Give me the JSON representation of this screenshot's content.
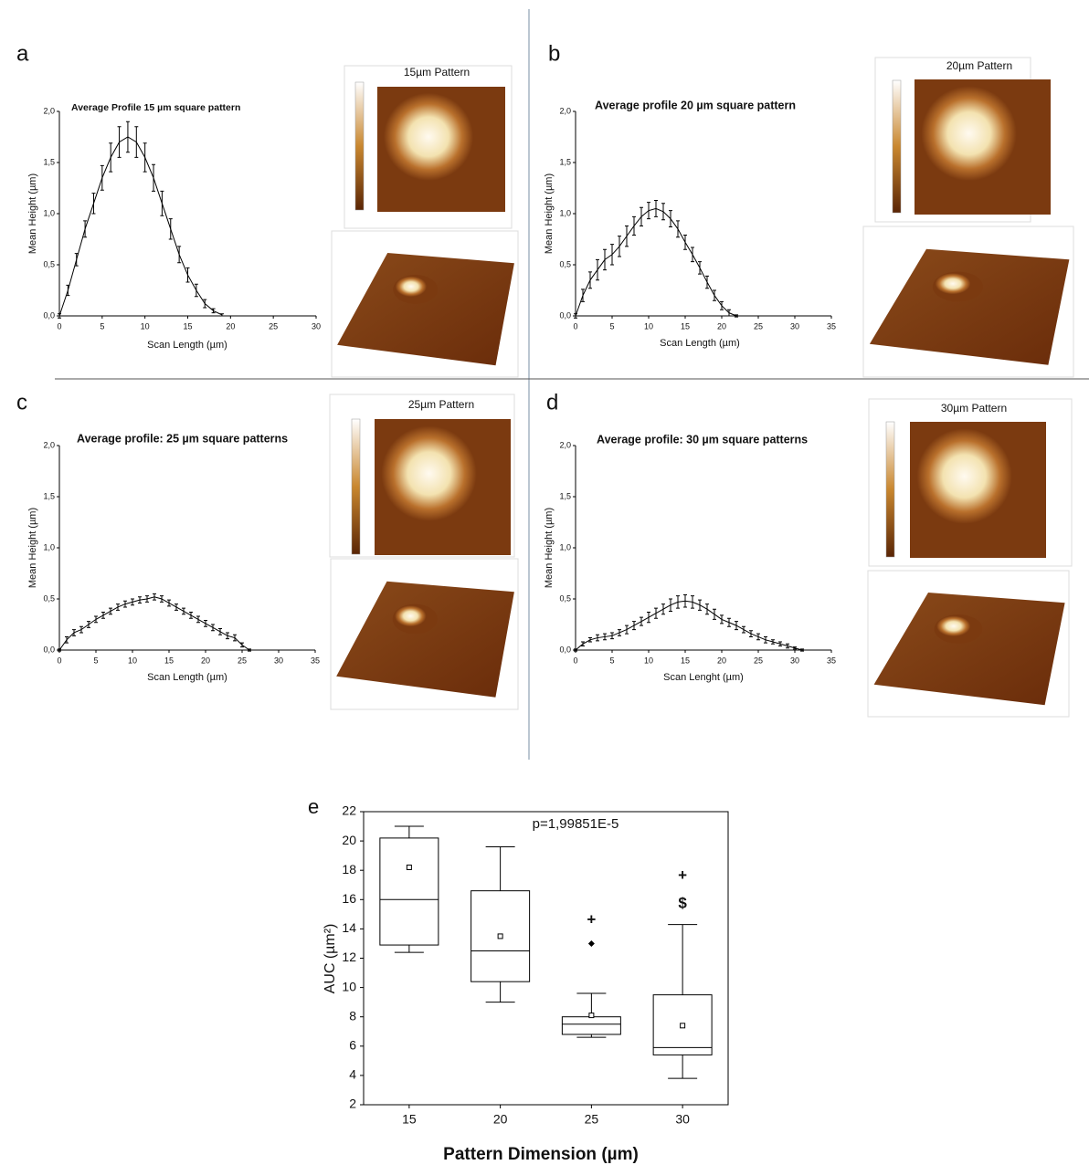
{
  "chart_data": [
    {
      "type": "line",
      "panel": "a",
      "title": "Average Profile 15 µm square pattern",
      "xlabel": "Scan Length (µm)",
      "ylabel": "Mean Height (µm)",
      "image_title": "15µm Pattern",
      "color": "#000000",
      "xlim": [
        0,
        30
      ],
      "xticks": [
        0,
        5,
        10,
        15,
        20,
        25,
        30
      ],
      "ylim": [
        0,
        2
      ],
      "yticks": [
        {
          "value": 0,
          "label": "0,0"
        },
        {
          "value": 0.5,
          "label": "0,5"
        },
        {
          "value": 1,
          "label": "1,0"
        },
        {
          "value": 1.5,
          "label": "1,5"
        },
        {
          "value": 2,
          "label": "2,0"
        }
      ],
      "x": [
        0,
        1,
        2,
        3,
        4,
        5,
        6,
        7,
        8,
        9,
        10,
        11,
        12,
        13,
        14,
        15,
        16,
        17,
        18,
        19
      ],
      "values": [
        0,
        0.25,
        0.55,
        0.85,
        1.1,
        1.35,
        1.55,
        1.7,
        1.75,
        1.7,
        1.55,
        1.35,
        1.1,
        0.85,
        0.6,
        0.4,
        0.25,
        0.12,
        0.05,
        0.01
      ],
      "errors": [
        0.02,
        0.05,
        0.06,
        0.08,
        0.1,
        0.12,
        0.14,
        0.15,
        0.15,
        0.15,
        0.14,
        0.13,
        0.12,
        0.1,
        0.08,
        0.07,
        0.06,
        0.04,
        0.02,
        0.01
      ]
    },
    {
      "type": "line",
      "panel": "b",
      "title": "Average profile 20 µm square pattern",
      "xlabel": "Scan Length (µm)",
      "ylabel": "Mean Height (µm)",
      "image_title": "20µm Pattern",
      "color": "#000000",
      "xlim": [
        0,
        35
      ],
      "xticks": [
        0,
        5,
        10,
        15,
        20,
        25,
        30,
        35
      ],
      "ylim": [
        0,
        2
      ],
      "yticks": [
        {
          "value": 0,
          "label": "0,0"
        },
        {
          "value": 0.5,
          "label": "0,5"
        },
        {
          "value": 1,
          "label": "1,0"
        },
        {
          "value": 1.5,
          "label": "1,5"
        },
        {
          "value": 2,
          "label": "2,0"
        }
      ],
      "x": [
        0,
        1,
        2,
        3,
        4,
        5,
        6,
        7,
        8,
        9,
        10,
        11,
        12,
        13,
        14,
        15,
        16,
        17,
        18,
        19,
        20,
        21,
        22
      ],
      "values": [
        0,
        0.2,
        0.35,
        0.45,
        0.55,
        0.6,
        0.68,
        0.78,
        0.88,
        0.97,
        1.03,
        1.05,
        1.02,
        0.95,
        0.85,
        0.72,
        0.6,
        0.47,
        0.33,
        0.2,
        0.1,
        0.03,
        0
      ],
      "errors": [
        0.02,
        0.06,
        0.08,
        0.1,
        0.1,
        0.1,
        0.1,
        0.1,
        0.09,
        0.09,
        0.08,
        0.08,
        0.08,
        0.08,
        0.08,
        0.07,
        0.07,
        0.06,
        0.06,
        0.05,
        0.04,
        0.03,
        0.01
      ]
    },
    {
      "type": "line",
      "panel": "c",
      "title": "Average profile: 25 µm square patterns",
      "xlabel": "Scan Length (µm)",
      "ylabel": "Mean Height (µm)",
      "image_title": "25µm Pattern",
      "color": "#000000",
      "xlim": [
        0,
        35
      ],
      "xticks": [
        0,
        5,
        10,
        15,
        20,
        25,
        30,
        35
      ],
      "ylim": [
        0,
        2
      ],
      "yticks": [
        {
          "value": 0,
          "label": "0,0"
        },
        {
          "value": 0.5,
          "label": "0,5"
        },
        {
          "value": 1,
          "label": "1,0"
        },
        {
          "value": 1.5,
          "label": "1,5"
        },
        {
          "value": 2,
          "label": "2,0"
        }
      ],
      "x": [
        0,
        1,
        2,
        3,
        4,
        5,
        6,
        7,
        8,
        9,
        10,
        11,
        12,
        13,
        14,
        15,
        16,
        17,
        18,
        19,
        20,
        21,
        22,
        23,
        24,
        25,
        26
      ],
      "values": [
        0,
        0.1,
        0.17,
        0.2,
        0.25,
        0.3,
        0.34,
        0.38,
        0.42,
        0.45,
        0.47,
        0.49,
        0.5,
        0.52,
        0.5,
        0.46,
        0.42,
        0.38,
        0.34,
        0.3,
        0.26,
        0.22,
        0.18,
        0.14,
        0.12,
        0.05,
        0
      ],
      "errors": [
        0.01,
        0.03,
        0.03,
        0.03,
        0.03,
        0.03,
        0.03,
        0.03,
        0.03,
        0.03,
        0.03,
        0.03,
        0.03,
        0.03,
        0.03,
        0.03,
        0.03,
        0.03,
        0.03,
        0.03,
        0.03,
        0.03,
        0.03,
        0.03,
        0.03,
        0.02,
        0.01
      ]
    },
    {
      "type": "line",
      "panel": "d",
      "title": "Average profile: 30 µm square patterns",
      "xlabel": "Scan Lenght (µm)",
      "ylabel": "Mean Height (µm)",
      "image_title": "30µm Pattern",
      "color": "#000000",
      "xlim": [
        0,
        35
      ],
      "xticks": [
        0,
        5,
        10,
        15,
        20,
        25,
        30,
        35
      ],
      "ylim": [
        0,
        2
      ],
      "yticks": [
        {
          "value": 0,
          "label": "0,0"
        },
        {
          "value": 0.5,
          "label": "0,5"
        },
        {
          "value": 1,
          "label": "1,0"
        },
        {
          "value": 1.5,
          "label": "1,5"
        },
        {
          "value": 2,
          "label": "2,0"
        }
      ],
      "x": [
        0,
        1,
        2,
        3,
        4,
        5,
        6,
        7,
        8,
        9,
        10,
        11,
        12,
        13,
        14,
        15,
        16,
        17,
        18,
        19,
        20,
        21,
        22,
        23,
        24,
        25,
        26,
        27,
        28,
        29,
        30,
        31
      ],
      "values": [
        0,
        0.06,
        0.1,
        0.12,
        0.13,
        0.14,
        0.17,
        0.2,
        0.24,
        0.28,
        0.32,
        0.36,
        0.4,
        0.44,
        0.47,
        0.48,
        0.47,
        0.44,
        0.4,
        0.35,
        0.3,
        0.27,
        0.24,
        0.2,
        0.16,
        0.13,
        0.1,
        0.08,
        0.06,
        0.04,
        0.02,
        0
      ],
      "errors": [
        0.01,
        0.02,
        0.02,
        0.03,
        0.03,
        0.03,
        0.03,
        0.04,
        0.04,
        0.04,
        0.05,
        0.05,
        0.05,
        0.06,
        0.06,
        0.06,
        0.06,
        0.05,
        0.05,
        0.05,
        0.04,
        0.04,
        0.04,
        0.03,
        0.03,
        0.03,
        0.03,
        0.02,
        0.02,
        0.02,
        0.01,
        0.01
      ]
    },
    {
      "type": "box",
      "panel": "e",
      "annotation": "p=1,99851E-5",
      "xlabel": "Pattern Dimension (µm)",
      "ylabel": "AUC (µm²)",
      "color": "#000000",
      "categories": [
        "15",
        "20",
        "25",
        "30"
      ],
      "ylim": [
        2,
        22
      ],
      "yticks": [
        2,
        4,
        6,
        8,
        10,
        12,
        14,
        16,
        18,
        20,
        22
      ],
      "boxes": [
        {
          "min": 12.4,
          "q1": 12.9,
          "median": 16.0,
          "q3": 20.2,
          "max": 21.0,
          "mean": 18.2
        },
        {
          "min": 9.0,
          "q1": 10.4,
          "median": 12.5,
          "q3": 16.6,
          "max": 19.6,
          "mean": 13.5
        },
        {
          "min": 6.6,
          "q1": 6.8,
          "median": 7.5,
          "q3": 8.0,
          "max": 9.6,
          "mean": 8.1,
          "outliers": [
            13.0
          ],
          "markers": [
            {
              "symbol": "+",
              "value": 14.6
            }
          ]
        },
        {
          "min": 3.8,
          "q1": 5.4,
          "median": 5.9,
          "q3": 9.5,
          "max": 14.3,
          "mean": 7.4,
          "markers": [
            {
              "symbol": "+",
              "value": 17.6
            },
            {
              "symbol": "$",
              "value": 15.7
            }
          ]
        }
      ]
    }
  ]
}
